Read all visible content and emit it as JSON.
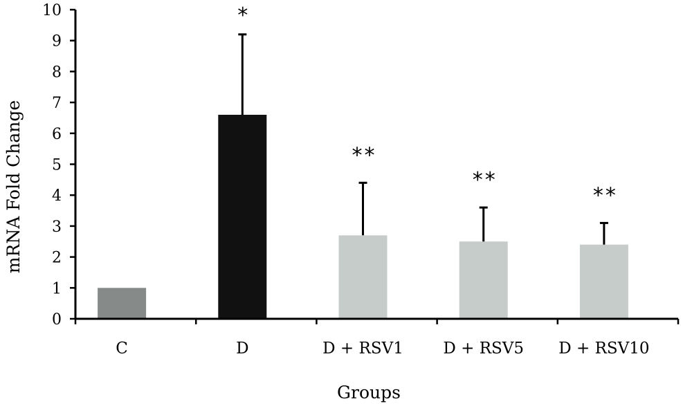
{
  "chart_data": {
    "type": "bar",
    "title": "",
    "xlabel": "Groups",
    "ylabel": "mRNA Fold  Change",
    "ylim": [
      0,
      10
    ],
    "yticks": [
      "0",
      "1",
      "2",
      "3",
      "4",
      "5",
      "6",
      "7",
      "8",
      "9",
      "10"
    ],
    "grid": false,
    "categories": [
      "C",
      "D",
      "D + RSV1",
      "D + RSV5",
      "D + RSV10"
    ],
    "values": [
      1.0,
      6.6,
      2.7,
      2.5,
      2.4
    ],
    "error_upper": [
      0,
      2.6,
      1.7,
      1.1,
      0.7
    ],
    "annotations": [
      "",
      "*",
      "**",
      "**",
      "**"
    ],
    "bar_colors": [
      "#868b8a",
      "#111111",
      "#c6ccc9",
      "#c6ccc9",
      "#c6ccc9"
    ]
  }
}
